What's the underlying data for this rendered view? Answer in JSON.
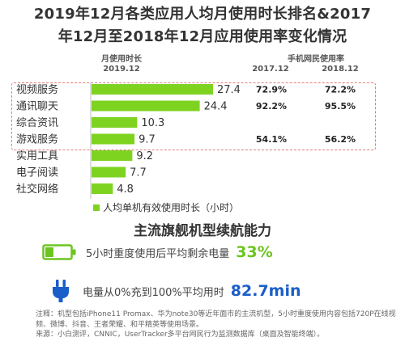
{
  "header": {
    "title_line1": "2019年12月各类应用人均月使用时长排名&2017",
    "title_line2": "年12月至2018年12月应用使用率变化情况"
  },
  "columns": {
    "usage_title": "月使用时长",
    "usage_date": "2019.12",
    "rate_title": "手机网民使用率",
    "rate_date_2017": "2017.12",
    "rate_date_2018": "2018.12"
  },
  "chart_data": {
    "type": "bar",
    "orientation": "horizontal",
    "categories": [
      "视频服务",
      "通讯聊天",
      "综合资讯",
      "游戏服务",
      "实用工具",
      "电子阅读",
      "社交网络"
    ],
    "values": [
      27.4,
      24.4,
      10.3,
      9.7,
      9.2,
      7.7,
      4.8
    ],
    "value_labels": [
      "27.4",
      "24.4",
      "10.3",
      "9.7",
      "9.2",
      "7.7",
      "4.8"
    ],
    "legend": "人均单机有效使用时长（小时）",
    "bar_color": "#7ed321",
    "highlight_color": "#e07a7a",
    "xlim": [
      0,
      27.4
    ],
    "usage_rate": {
      "2017.12": [
        "72.9%",
        "92.2%",
        "",
        "54.1%",
        "",
        "",
        ""
      ],
      "2018.12": [
        "72.2%",
        "95.5%",
        "",
        "56.2%",
        "",
        "",
        ""
      ]
    },
    "rate_color": "#222222"
  },
  "battery": {
    "subtitle": "主流旗舰机型续航能力",
    "remaining_label": "5小时重度使用后平均剩余电量",
    "remaining_value": "33%",
    "remaining_fill": 0.33,
    "charge_label": "电量从0%充到100%平均用时",
    "charge_value": "82.7min",
    "green": "#6cc51f",
    "blue": "#1a5ec9"
  },
  "notes": {
    "note": "注释：机型包括iPhone11 Promax、华为note30等近年面市的主流机型，5小时重度使用内容包括720P在线视频、微博、抖音、王者荣耀、和平精英等使用场景。",
    "source": "来源：小白测评，CNNIC，UserTracker多平台网民行为监测数据库（桌面及智能终端）。"
  }
}
